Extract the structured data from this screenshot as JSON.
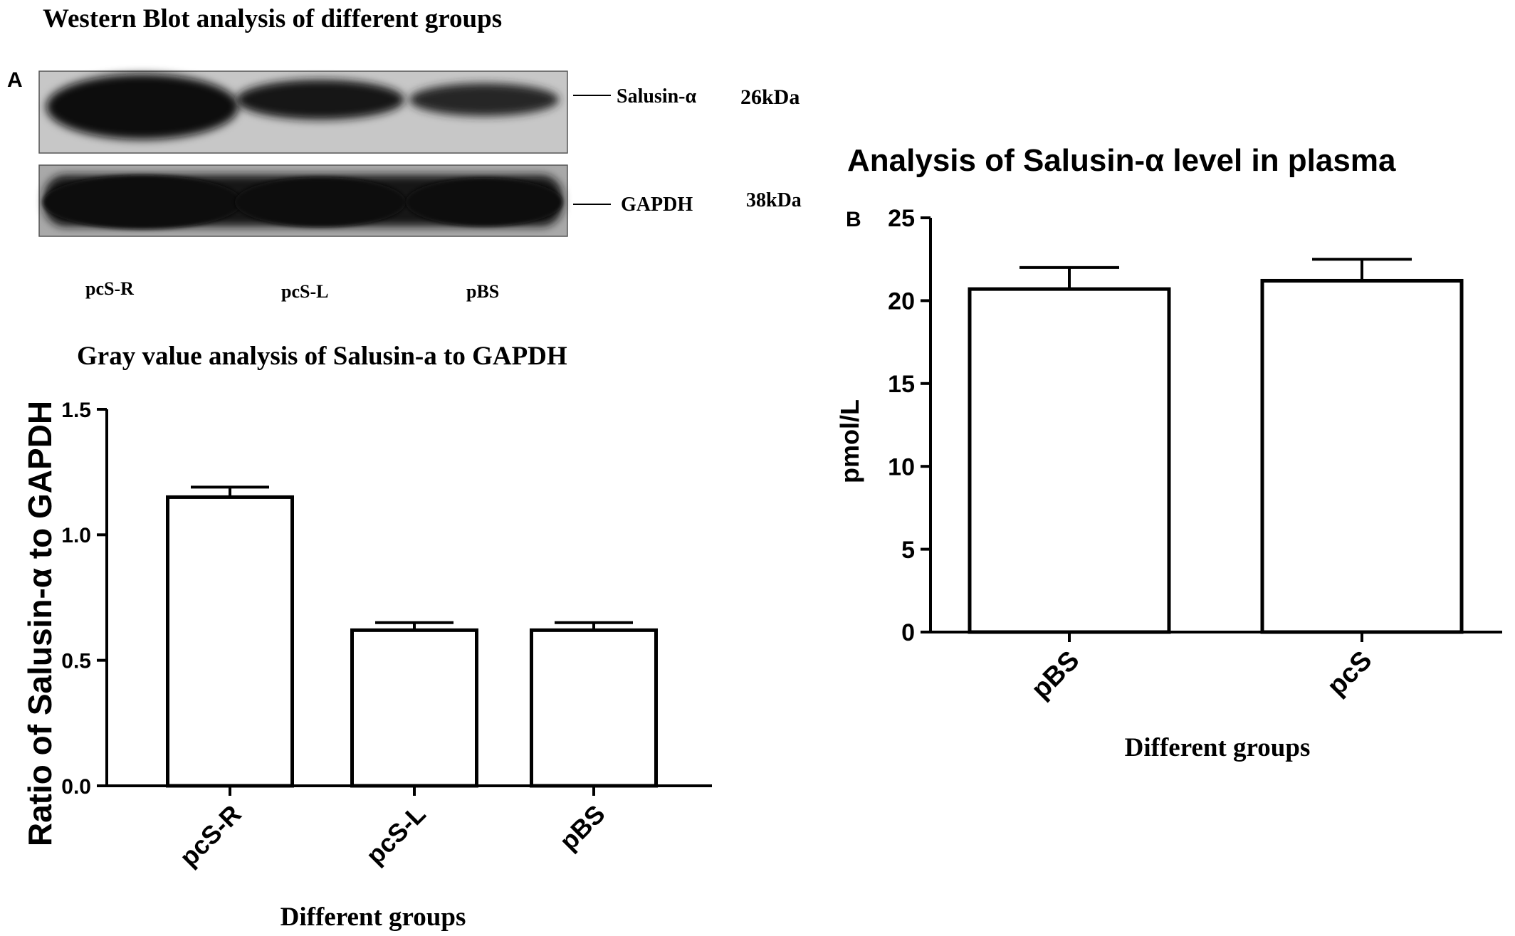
{
  "figure": {
    "panel_a_letter": "A",
    "panel_b_letter": "B",
    "blot_title": "Western Blot analysis of different groups",
    "blot": {
      "bands": [
        {
          "label": "Salusin-α",
          "size": "26kDa"
        },
        {
          "label": "GAPDH",
          "size": "38kDa"
        }
      ],
      "lanes": [
        "pcS-R",
        "pcS-L",
        "pBS"
      ]
    }
  },
  "chart_data": [
    {
      "type": "bar",
      "title": "Gray value analysis of Salusin-a to GAPDH",
      "ylabel": "Ratio of Salusin-α to GAPDH",
      "xlabel": "Different groups",
      "categories": [
        "pcS-R",
        "pcS-L",
        "pBS"
      ],
      "values": [
        1.15,
        0.62,
        0.62
      ],
      "errors": [
        0.04,
        0.03,
        0.03
      ],
      "ylim": [
        0,
        1.5
      ],
      "yticks": [
        "0.0",
        "0.5",
        "1.0",
        "1.5"
      ],
      "ytick_values": [
        0,
        0.5,
        1.0,
        1.5
      ],
      "bar_color": "#ffffff",
      "edge_color": "#000000",
      "grid": false
    },
    {
      "type": "bar",
      "title": "Analysis of Salusin-α level in plasma",
      "ylabel": "pmol/L",
      "xlabel": "Different groups",
      "categories": [
        "pBS",
        "pcS"
      ],
      "values": [
        20.7,
        21.2
      ],
      "errors": [
        1.3,
        1.3
      ],
      "ylim": [
        0,
        25
      ],
      "yticks": [
        "0",
        "5",
        "10",
        "15",
        "20",
        "25"
      ],
      "ytick_values": [
        0,
        5,
        10,
        15,
        20,
        25
      ],
      "bar_color": "#ffffff",
      "edge_color": "#000000",
      "grid": false
    }
  ]
}
